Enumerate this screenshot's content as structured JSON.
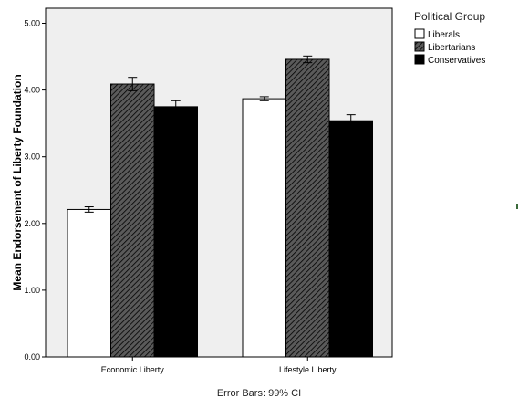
{
  "chart_data": {
    "type": "bar",
    "ylabel": "Mean Endorsement of Liberty Foundation",
    "xlabel": "",
    "categories": [
      "Economic Liberty",
      "Lifestyle Liberty"
    ],
    "ylim": [
      0,
      5
    ],
    "yticks": [
      "0.00",
      "1.00",
      "2.00",
      "3.00",
      "4.00",
      "5.00"
    ],
    "grid": false,
    "legend_position": "right",
    "legend_title": "Political Group",
    "footnote": "Error Bars: 99% CI",
    "series": [
      {
        "name": "Liberals",
        "values": [
          2.21,
          3.87
        ],
        "ci": [
          [
            2.17,
            2.25
          ],
          [
            3.84,
            3.9
          ]
        ],
        "fill": "#ffffff",
        "pattern": "none"
      },
      {
        "name": "Libertarians",
        "values": [
          4.09,
          4.46
        ],
        "ci": [
          [
            3.99,
            4.19
          ],
          [
            4.41,
            4.51
          ]
        ],
        "fill": "#4a4a4a",
        "pattern": "hatch"
      },
      {
        "name": "Conservatives",
        "values": [
          3.75,
          3.54
        ],
        "ci": [
          [
            3.66,
            3.84
          ],
          [
            3.45,
            3.63
          ]
        ],
        "fill": "#000000",
        "pattern": "none"
      }
    ]
  },
  "colors": {
    "plot_background": "#efefef",
    "bar_outline": "#000000",
    "hatch_line": "#000000"
  }
}
